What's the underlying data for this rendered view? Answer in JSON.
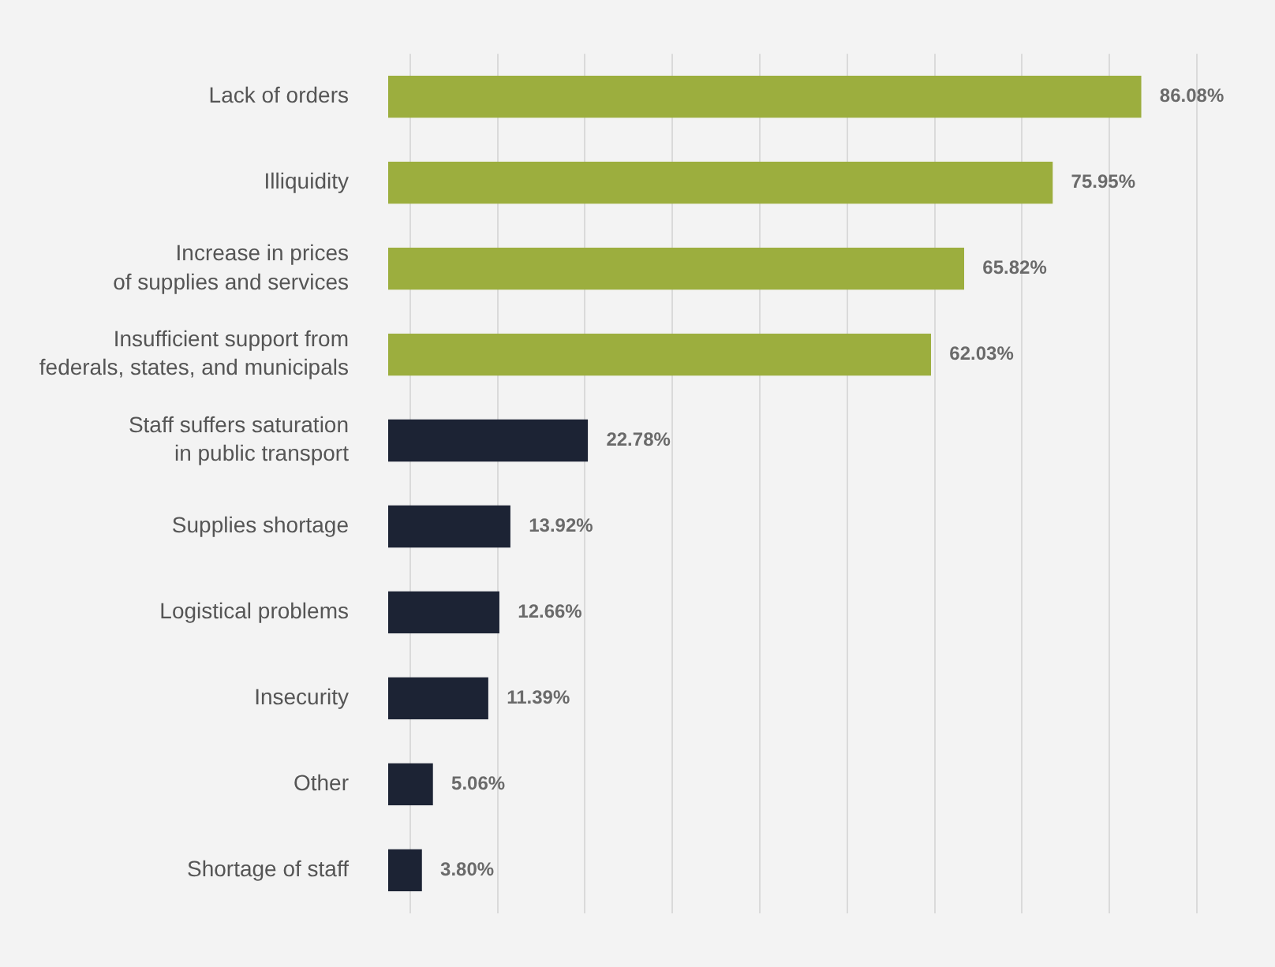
{
  "chart_data": {
    "type": "bar",
    "orientation": "horizontal",
    "categories": [
      "Lack of orders",
      "Illiquidity",
      "Increase in prices\nof supplies and services",
      "Insufficient support from\nfederals, states, and municipals",
      "Staff suffers saturation\nin public transport",
      "Supplies shortage",
      "Logistical problems",
      "Insecurity",
      "Other",
      "Shortage of staff"
    ],
    "values": [
      86.08,
      75.95,
      65.82,
      62.03,
      22.78,
      13.92,
      12.66,
      11.39,
      5.06,
      3.8
    ],
    "colors": [
      "#9cae3e",
      "#9cae3e",
      "#9cae3e",
      "#9cae3e",
      "#1c2334",
      "#1c2334",
      "#1c2334",
      "#1c2334",
      "#1c2334",
      "#1c2334"
    ],
    "value_labels": [
      "86.08%",
      "75.95%",
      "65.82%",
      "62.03%",
      "22.78%",
      "13.92%",
      "12.66%",
      "11.39%",
      "5.06%",
      "3.80%"
    ],
    "xlim": [
      0,
      92.5
    ],
    "xticks": [
      {
        "value": 2.5,
        "label": null
      },
      {
        "value": 12.5,
        "label": null
      },
      {
        "value": 22.5,
        "label": null
      },
      {
        "value": 32.5,
        "label": null
      },
      {
        "value": 42.5,
        "label": null
      },
      {
        "value": 52.5,
        "label": null
      },
      {
        "value": 62.5,
        "label": null
      },
      {
        "value": 72.5,
        "label": null
      },
      {
        "value": 82.5,
        "label": null
      },
      {
        "value": 92.5,
        "label": null
      }
    ],
    "grid": "x",
    "tick_labels": "y"
  }
}
